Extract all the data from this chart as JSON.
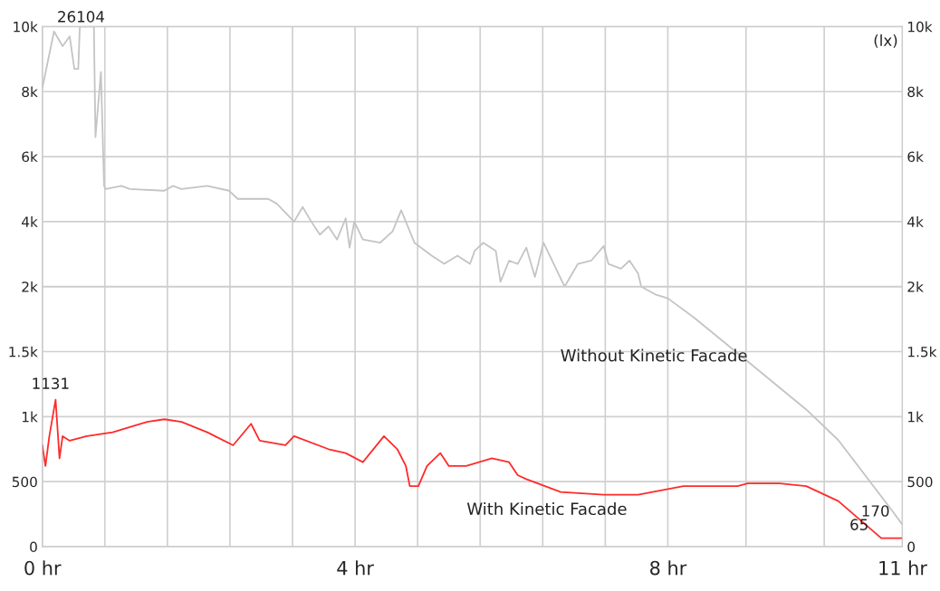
{
  "chart_data": [
    {
      "type": "line",
      "xlim": [
        0,
        11
      ],
      "xticks": [
        {
          "value": 0,
          "label": null
        },
        {
          "value": 0.8,
          "label": null
        },
        {
          "value": 1.6,
          "label": null
        },
        {
          "value": 2.4,
          "label": null
        },
        {
          "value": 3.2,
          "label": null
        },
        {
          "value": 4,
          "label": null
        },
        {
          "value": 4.8,
          "label": null
        },
        {
          "value": 5.6,
          "label": null
        },
        {
          "value": 6.4,
          "label": null
        },
        {
          "value": 7.2,
          "label": null
        },
        {
          "value": 8,
          "label": null
        },
        {
          "value": 9,
          "label": null
        },
        {
          "value": 10,
          "label": null
        },
        {
          "value": 11,
          "label": null
        }
      ],
      "ylim": [
        2000,
        10000
      ],
      "yticks": [
        {
          "value": 2000,
          "label": "2k"
        },
        {
          "value": 4000,
          "label": "4k"
        },
        {
          "value": 6000,
          "label": "6k"
        },
        {
          "value": 8000,
          "label": "8k"
        },
        {
          "value": 10000,
          "label": "10k"
        }
      ],
      "y2lim": [
        2000,
        10000
      ],
      "y2ticks": [
        {
          "value": 2000,
          "label": "2k"
        },
        {
          "value": 4000,
          "label": "4k"
        },
        {
          "value": 6000,
          "label": "6k"
        },
        {
          "value": 8000,
          "label": "8k"
        },
        {
          "value": 10000,
          "label": "10k"
        }
      ],
      "tick_labels": "y",
      "grid": true,
      "legend": false,
      "marker": "none",
      "line_style": "solid",
      "series": [
        {
          "color": "#c4c4c4",
          "x": [
            0,
            0.15,
            0.26,
            0.35,
            0.41,
            0.46,
            0.48,
            0.66,
            0.68,
            0.75,
            0.79,
            0.81,
            1.01,
            1.12,
            1.56,
            1.67,
            1.78,
            2.11,
            2.39,
            2.5,
            2.89,
            3.0,
            3.22,
            3.33,
            3.44,
            3.55,
            3.66,
            3.77,
            3.88,
            3.93,
            3.99,
            4.1,
            4.32,
            4.48,
            4.59,
            4.76,
            4.98,
            5.14,
            5.31,
            5.47,
            5.53,
            5.64,
            5.8,
            5.86,
            5.97,
            6.08,
            6.19,
            6.3,
            6.41,
            6.57,
            6.68,
            6.85,
            7.02,
            7.18,
            7.24,
            7.4,
            7.51,
            7.62,
            7.66
          ],
          "values": [
            8100,
            9850,
            9400,
            9700,
            8700,
            8700,
            10000,
            10000,
            6600,
            8600,
            5100,
            5000,
            5100,
            5000,
            4950,
            5100,
            5000,
            5100,
            4950,
            4700,
            4700,
            4550,
            4000,
            4450,
            4000,
            3600,
            3850,
            3450,
            4100,
            3200,
            4000,
            3450,
            3350,
            3700,
            4350,
            3350,
            2950,
            2700,
            2950,
            2700,
            3100,
            3350,
            3100,
            2150,
            2800,
            2700,
            3200,
            2300,
            3350,
            2550,
            2000,
            2700,
            2800,
            3250,
            2700,
            2550,
            2800,
            2400,
            2000
          ]
        }
      ],
      "annotations": [
        "26104",
        "(lx)"
      ]
    },
    {
      "type": "line",
      "xlim": [
        0,
        11
      ],
      "xticks": [
        {
          "value": 0,
          "label": "0 hr"
        },
        {
          "value": 0.8,
          "label": null
        },
        {
          "value": 1.6,
          "label": null
        },
        {
          "value": 2.4,
          "label": null
        },
        {
          "value": 3.2,
          "label": null
        },
        {
          "value": 4,
          "label": "4 hr"
        },
        {
          "value": 4.8,
          "label": null
        },
        {
          "value": 5.6,
          "label": null
        },
        {
          "value": 6.4,
          "label": null
        },
        {
          "value": 7.2,
          "label": null
        },
        {
          "value": 8,
          "label": "8 hr"
        },
        {
          "value": 9,
          "label": null
        },
        {
          "value": 10,
          "label": null
        },
        {
          "value": 11,
          "label": "11 hr"
        }
      ],
      "ylim": [
        0,
        2000
      ],
      "yticks": [
        0,
        500,
        {
          "value": 1000,
          "label": "1k"
        },
        {
          "value": 1500,
          "label": "1.5k"
        },
        {
          "value": 2000,
          "label": null
        }
      ],
      "y2lim": [
        0,
        2000
      ],
      "y2ticks": [
        0,
        500,
        {
          "value": 1000,
          "label": "1k"
        },
        {
          "value": 1500,
          "label": "1.5k"
        },
        {
          "value": 2000,
          "label": null
        }
      ],
      "grid": true,
      "legend": false,
      "marker": "none",
      "line_style": "solid",
      "series": [
        {
          "name": "Without Kinetic Facade",
          "color": "#c4c4c4",
          "x": [
            7.66,
            7.84,
            8.0,
            8.34,
            9.02,
            9.77,
            10.18,
            10.86,
            11
          ],
          "values": [
            2000,
            1940,
            1910,
            1760,
            1425,
            1055,
            820,
            284,
            170
          ]
        },
        {
          "name": "With Kinetic Facade",
          "color": "#ff2a2a",
          "x": [
            0,
            0.04,
            0.09,
            0.17,
            0.22,
            0.26,
            0.35,
            0.57,
            0.9,
            1.34,
            1.56,
            1.78,
            2.11,
            2.44,
            2.67,
            2.78,
            3.11,
            3.22,
            3.66,
            3.88,
            4.1,
            4.37,
            4.54,
            4.65,
            4.7,
            4.81,
            4.92,
            5.09,
            5.2,
            5.42,
            5.75,
            5.97,
            6.08,
            6.19,
            6.63,
            7.18,
            7.62,
            8.2,
            8.89,
            9.02,
            9.43,
            9.77,
            10.18,
            10.73,
            11
          ],
          "values": [
            783,
            620,
            850,
            1131,
            680,
            850,
            815,
            850,
            880,
            960,
            980,
            960,
            880,
            780,
            945,
            815,
            780,
            850,
            750,
            720,
            650,
            850,
            750,
            620,
            466,
            466,
            620,
            720,
            620,
            620,
            680,
            650,
            550,
            520,
            420,
            400,
            400,
            466,
            466,
            486,
            486,
            466,
            351,
            65,
            65
          ]
        }
      ],
      "annotations": [
        {
          "text": "1131",
          "x": 0.17,
          "y": 1131
        },
        {
          "text": "170",
          "x": 11,
          "y": 170
        },
        {
          "text": "65",
          "x": 10.73,
          "y": 65
        }
      ]
    }
  ]
}
